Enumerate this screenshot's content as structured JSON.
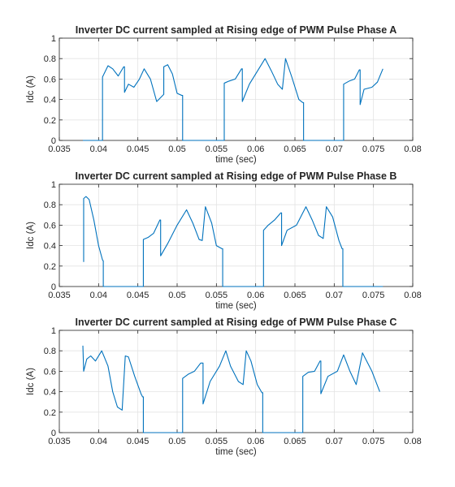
{
  "chart_data": [
    {
      "type": "line",
      "title": "Inverter DC current sampled at Rising edge of PWM Pulse Phase A",
      "xlabel": "time (sec)",
      "ylabel": "Idc (A)",
      "xlim": [
        0.035,
        0.08
      ],
      "ylim": [
        0,
        1
      ],
      "xticks": [
        "0.035",
        "0.04",
        "0.045",
        "0.05",
        "0.055",
        "0.06",
        "0.065",
        "0.07",
        "0.075",
        "0.08"
      ],
      "yticks": [
        "0",
        "0.2",
        "0.4",
        "0.6",
        "0.8",
        "1"
      ],
      "grid": true,
      "series": [
        {
          "color": "#0072BD",
          "x": [
            0.038,
            0.0405,
            0.0405,
            0.0412,
            0.0418,
            0.0425,
            0.0432,
            0.0433,
            0.0433,
            0.0438,
            0.0445,
            0.0452,
            0.0458,
            0.0466,
            0.0474,
            0.0483,
            0.0483,
            0.0488,
            0.0494,
            0.05,
            0.0506,
            0.0507,
            0.0507,
            0.056,
            0.056,
            0.0566,
            0.0574,
            0.0582,
            0.0583,
            0.0583,
            0.0592,
            0.0604,
            0.0612,
            0.062,
            0.0628,
            0.0634,
            0.0638,
            0.0646,
            0.0655,
            0.066,
            0.0661,
            0.0661,
            0.0712,
            0.0712,
            0.0719,
            0.0726,
            0.0732,
            0.0733,
            0.0733,
            0.0738,
            0.0748,
            0.0755,
            0.0762
          ],
          "y": [
            0,
            0,
            0.62,
            0.73,
            0.7,
            0.63,
            0.72,
            0.72,
            0.47,
            0.55,
            0.52,
            0.6,
            0.7,
            0.6,
            0.38,
            0.45,
            0.72,
            0.74,
            0.65,
            0.46,
            0.44,
            0.44,
            0,
            0,
            0.56,
            0.58,
            0.6,
            0.7,
            0.7,
            0.38,
            0.55,
            0.7,
            0.8,
            0.68,
            0.55,
            0.5,
            0.8,
            0.62,
            0.4,
            0.37,
            0.37,
            0,
            0,
            0.55,
            0.58,
            0.6,
            0.69,
            0.69,
            0.35,
            0.5,
            0.52,
            0.57,
            0.7
          ]
        }
      ]
    },
    {
      "type": "line",
      "title": "Inverter DC current sampled at Rising edge of PWM Pulse Phase B",
      "xlabel": "time (sec)",
      "ylabel": "Idc (A)",
      "xlim": [
        0.035,
        0.08
      ],
      "ylim": [
        0,
        1
      ],
      "xticks": [
        "0.035",
        "0.04",
        "0.045",
        "0.05",
        "0.055",
        "0.06",
        "0.065",
        "0.07",
        "0.075",
        "0.08"
      ],
      "yticks": [
        "0",
        "0.2",
        "0.4",
        "0.6",
        "0.8",
        "1"
      ],
      "grid": true,
      "series": [
        {
          "color": "#0072BD",
          "x": [
            0.0381,
            0.0381,
            0.0384,
            0.0388,
            0.0394,
            0.04,
            0.0405,
            0.0406,
            0.0406,
            0.0457,
            0.0457,
            0.0463,
            0.047,
            0.0478,
            0.0479,
            0.0479,
            0.0488,
            0.05,
            0.0512,
            0.052,
            0.0528,
            0.0532,
            0.0536,
            0.0544,
            0.055,
            0.0557,
            0.0558,
            0.0558,
            0.061,
            0.061,
            0.0616,
            0.0624,
            0.0632,
            0.0633,
            0.0633,
            0.064,
            0.0652,
            0.0664,
            0.0672,
            0.068,
            0.0686,
            0.069,
            0.0698,
            0.0706,
            0.071,
            0.0711,
            0.0711,
            0.0762
          ],
          "y": [
            0.24,
            0.86,
            0.88,
            0.85,
            0.65,
            0.4,
            0.26,
            0.25,
            0,
            0,
            0.46,
            0.48,
            0.52,
            0.65,
            0.65,
            0.3,
            0.42,
            0.6,
            0.75,
            0.62,
            0.46,
            0.45,
            0.78,
            0.62,
            0.4,
            0.37,
            0.37,
            0,
            0,
            0.55,
            0.6,
            0.65,
            0.72,
            0.72,
            0.4,
            0.55,
            0.6,
            0.78,
            0.65,
            0.5,
            0.47,
            0.78,
            0.68,
            0.45,
            0.37,
            0.37,
            0,
            0
          ]
        }
      ]
    },
    {
      "type": "line",
      "title": "Inverter DC current sampled at Rising edge of PWM Pulse Phase C",
      "xlabel": "time (sec)",
      "ylabel": "Idc (A)",
      "xlim": [
        0.035,
        0.08
      ],
      "ylim": [
        0,
        1
      ],
      "xticks": [
        "0.035",
        "0.04",
        "0.045",
        "0.05",
        "0.055",
        "0.06",
        "0.065",
        "0.07",
        "0.075",
        "0.08"
      ],
      "yticks": [
        "0",
        "0.2",
        "0.4",
        "0.6",
        "0.8",
        "1"
      ],
      "grid": true,
      "series": [
        {
          "color": "#0072BD",
          "x": [
            0.038,
            0.0381,
            0.0385,
            0.039,
            0.0396,
            0.0404,
            0.0412,
            0.0418,
            0.0424,
            0.043,
            0.0434,
            0.0438,
            0.0446,
            0.0454,
            0.0456,
            0.0457,
            0.0457,
            0.0507,
            0.0507,
            0.0514,
            0.0522,
            0.053,
            0.0533,
            0.0533,
            0.0542,
            0.0554,
            0.0562,
            0.0568,
            0.0578,
            0.0584,
            0.0588,
            0.0594,
            0.0602,
            0.0608,
            0.0609,
            0.0609,
            0.066,
            0.066,
            0.0667,
            0.0675,
            0.0682,
            0.0683,
            0.0683,
            0.0692,
            0.0704,
            0.0712,
            0.072,
            0.0728,
            0.0736,
            0.0748,
            0.0758
          ],
          "y": [
            0.85,
            0.6,
            0.72,
            0.75,
            0.7,
            0.8,
            0.65,
            0.4,
            0.25,
            0.22,
            0.75,
            0.74,
            0.55,
            0.38,
            0.35,
            0.35,
            0,
            0,
            0.53,
            0.57,
            0.6,
            0.68,
            0.68,
            0.28,
            0.5,
            0.65,
            0.8,
            0.65,
            0.5,
            0.47,
            0.8,
            0.7,
            0.47,
            0.39,
            0.39,
            0,
            0,
            0.55,
            0.59,
            0.6,
            0.7,
            0.7,
            0.38,
            0.55,
            0.6,
            0.76,
            0.6,
            0.47,
            0.78,
            0.6,
            0.4
          ]
        }
      ]
    }
  ]
}
